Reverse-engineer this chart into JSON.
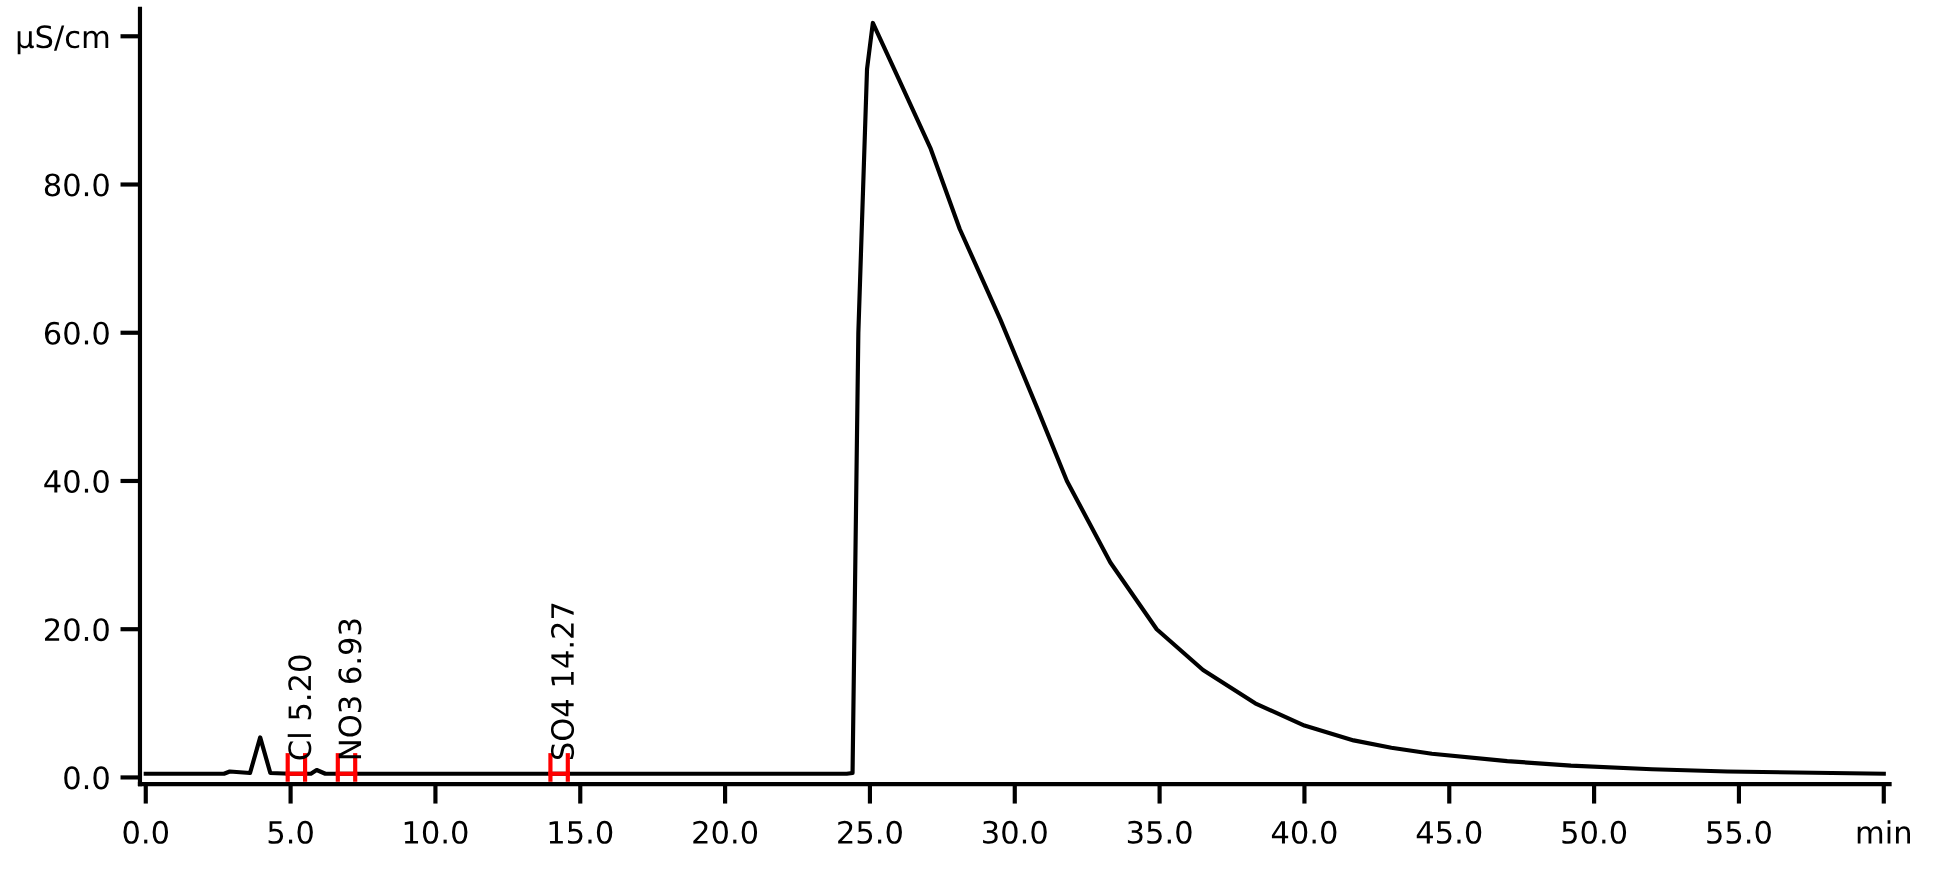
{
  "chart_data": {
    "type": "line",
    "x": [
      0,
      2.7,
      2.9,
      3.6,
      3.95,
      4.3,
      5.0,
      5.7,
      5.9,
      6.2,
      9,
      24.2,
      24.4,
      24.6,
      24.9,
      25.1,
      26.0,
      27.1,
      28.1,
      29.5,
      30.8,
      31.8,
      33.3,
      34.9,
      36.5,
      38.3,
      40,
      41.7,
      43,
      44.4,
      47,
      49.2,
      52,
      54.6,
      60
    ],
    "series": [
      {
        "color": "#000000",
        "values": [
          0.5,
          0.5,
          0.8,
          0.6,
          5.4,
          0.6,
          0.5,
          0.5,
          1.0,
          0.5,
          0.5,
          0.5,
          0.6,
          60,
          95.6,
          101.8,
          94.2,
          84.8,
          74,
          61.8,
          49.6,
          40,
          29,
          20,
          14.5,
          10,
          7,
          5,
          4,
          3.2,
          2.2,
          1.6,
          1.1,
          0.8,
          0.5
        ]
      }
    ],
    "xlim": [
      -0.2,
      60.2
    ],
    "ylim": [
      -0.9,
      103.7
    ],
    "xticks": [
      {
        "value": 0,
        "label": "0.0"
      },
      {
        "value": 5,
        "label": "5.0"
      },
      {
        "value": 10,
        "label": "10.0"
      },
      {
        "value": 15,
        "label": "15.0"
      },
      {
        "value": 20,
        "label": "20.0"
      },
      {
        "value": 25,
        "label": "25.0"
      },
      {
        "value": 30,
        "label": "30.0"
      },
      {
        "value": 35,
        "label": "35.0"
      },
      {
        "value": 40,
        "label": "40.0"
      },
      {
        "value": 45,
        "label": "45.0"
      },
      {
        "value": 50,
        "label": "50.0"
      },
      {
        "value": 55,
        "label": "55.0"
      },
      {
        "value": 60,
        "label": "min"
      }
    ],
    "yticks": [
      {
        "value": 0,
        "label": "0.0"
      },
      {
        "value": 20,
        "label": "20.0"
      },
      {
        "value": 40,
        "label": "40.0"
      },
      {
        "value": 60,
        "label": "60.0"
      },
      {
        "value": 80,
        "label": "80.0"
      },
      {
        "value": 100,
        "label": "µS/cm"
      }
    ],
    "annotations": [
      {
        "text": "Cl 5.20",
        "x": 5.2,
        "y": 0.5
      },
      {
        "text": "NO3 6.93",
        "x": 6.93,
        "y": 0.5
      },
      {
        "text": "SO4 14.27",
        "x": 14.27,
        "y": 0.5
      }
    ],
    "grid": false,
    "legend": false,
    "marker": "none",
    "line_style": "solid"
  }
}
